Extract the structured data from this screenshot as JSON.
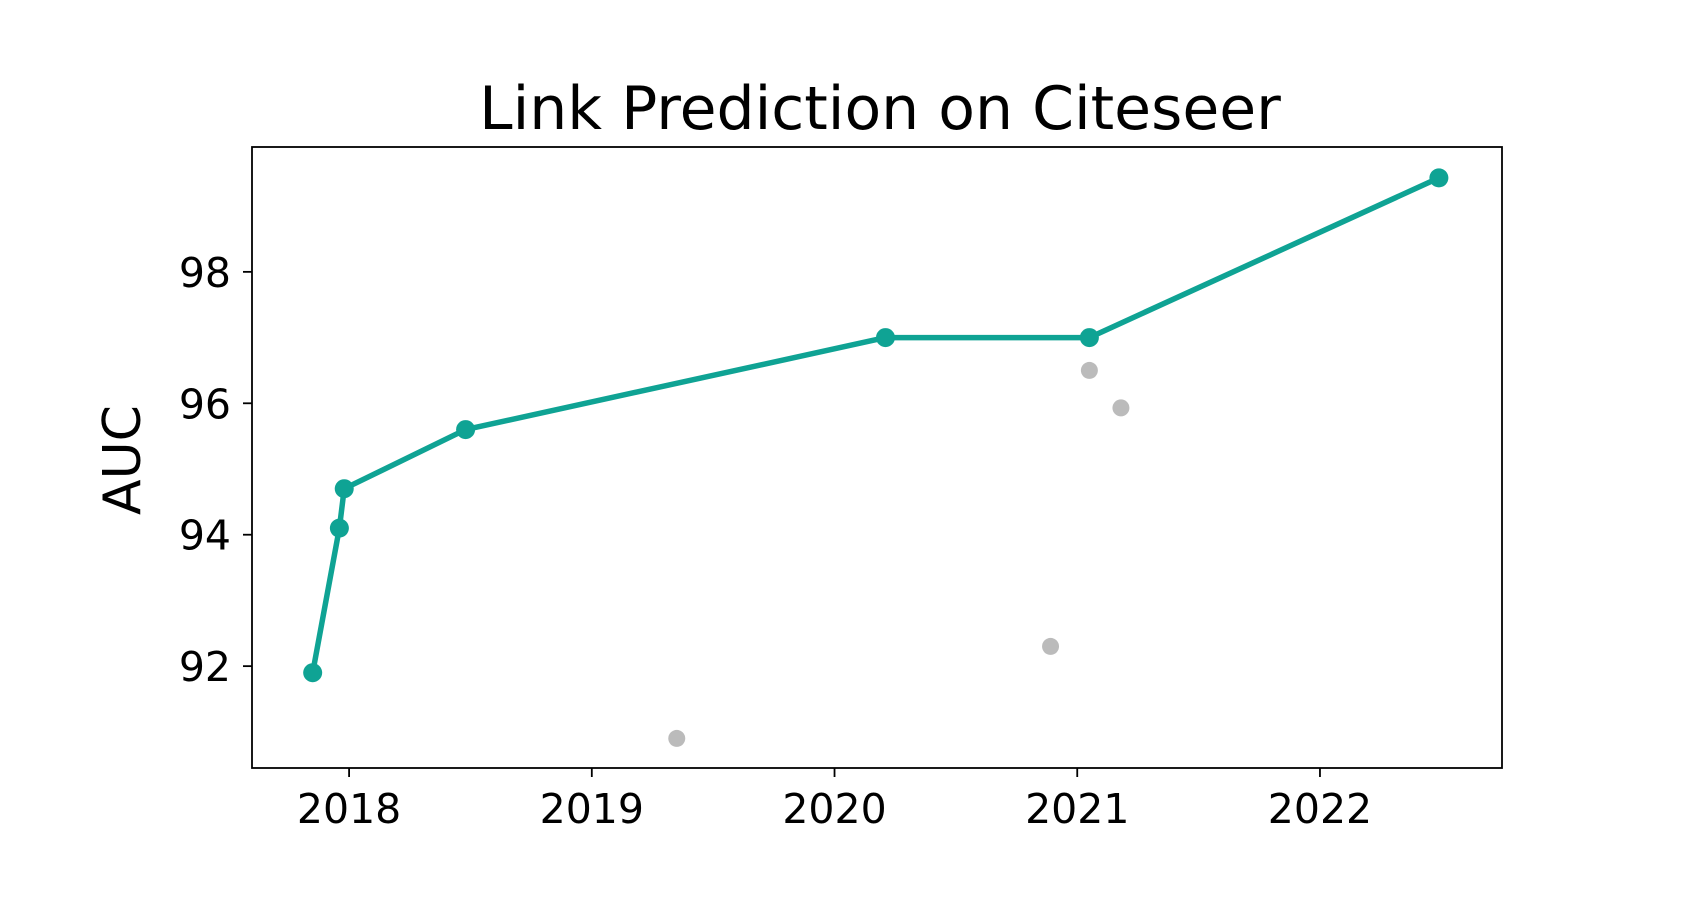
{
  "chart_data": {
    "type": "scatter",
    "title": "Link Prediction on Citeseer",
    "xlabel": "",
    "ylabel": "AUC",
    "xticks": [
      "2018",
      "2019",
      "2020",
      "2021",
      "2022"
    ],
    "yticks": [
      "92",
      "94",
      "96",
      "98"
    ],
    "xlim": [
      2017.6,
      2022.75
    ],
    "ylim": [
      90.45,
      99.9
    ],
    "grid": false,
    "series": [
      {
        "role": "state-of-the-art frontier",
        "style": "line+markers",
        "color": "#0FA394",
        "points": [
          {
            "x": 2017.85,
            "y": 91.9
          },
          {
            "x": 2017.96,
            "y": 94.1
          },
          {
            "x": 2017.98,
            "y": 94.7
          },
          {
            "x": 2018.48,
            "y": 95.6
          },
          {
            "x": 2020.21,
            "y": 97.0
          },
          {
            "x": 2021.05,
            "y": 97.0
          },
          {
            "x": 2022.49,
            "y": 99.43
          }
        ]
      },
      {
        "role": "other results",
        "style": "markers",
        "color": "#BBBBBB",
        "points": [
          {
            "x": 2019.35,
            "y": 90.9
          },
          {
            "x": 2020.89,
            "y": 92.3
          },
          {
            "x": 2021.05,
            "y": 96.5
          },
          {
            "x": 2021.18,
            "y": 95.93
          }
        ]
      }
    ]
  }
}
